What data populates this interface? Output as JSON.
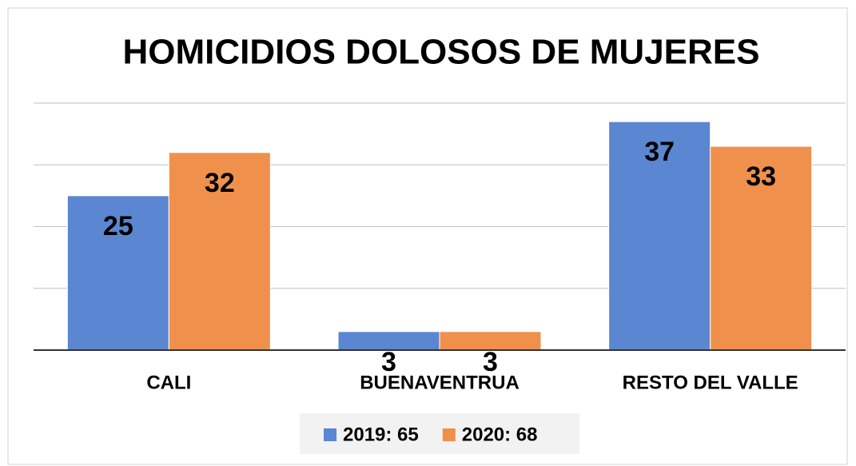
{
  "chart_data": {
    "type": "bar",
    "title": "HOMICIDIOS DOLOSOS DE MUJERES",
    "categories": [
      "CALI",
      "BUENAVENTRUA",
      "RESTO DEL VALLE"
    ],
    "series": [
      {
        "name": "2019: 65",
        "color": "#5b86d1",
        "values": [
          25,
          3,
          37
        ]
      },
      {
        "name": "2020: 68",
        "color": "#f0904d",
        "values": [
          32,
          3,
          33
        ]
      }
    ],
    "ylim": [
      0,
      40
    ],
    "yticks": [
      0,
      10,
      20,
      30,
      40
    ],
    "grid": true,
    "legend": "bottom"
  }
}
